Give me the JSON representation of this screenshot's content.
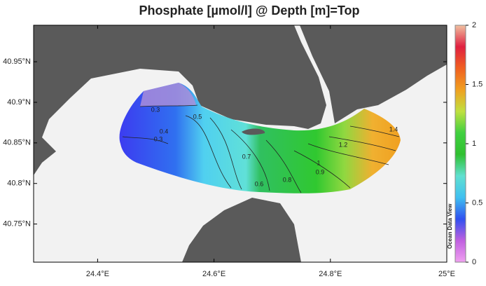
{
  "map": {
    "title": "Phosphate [µmol/l] @ Depth [m]=Top",
    "xlim": [
      24.29,
      25
    ],
    "ylim": [
      40.703,
      40.995
    ],
    "xticks": [
      {
        "value": 24.4,
        "label": "24.4°E"
      },
      {
        "value": 24.6,
        "label": "24.6°E"
      },
      {
        "value": 24.8,
        "label": "24.8°E"
      },
      {
        "value": 25,
        "label": "25°E"
      }
    ],
    "yticks": [
      {
        "value": 40.75,
        "label": "40.75°N"
      },
      {
        "value": 40.8,
        "label": "40.8°N"
      },
      {
        "value": 40.85,
        "label": "40.85°N"
      },
      {
        "value": 40.9,
        "label": "40.9°N"
      },
      {
        "value": 40.95,
        "label": "40.95°N"
      }
    ],
    "colorbar": {
      "range": [
        0,
        2
      ],
      "ticks": [
        0,
        0.5,
        1,
        1.5,
        2
      ],
      "colors": [
        "#f0a0f0",
        "#c060e0",
        "#3050f0",
        "#40c0f0",
        "#60e0d0",
        "#30c030",
        "#40d040",
        "#c0e040",
        "#f0a020",
        "#f06020",
        "#e02040",
        "#f0c0a0"
      ]
    },
    "contours": [
      0.3,
      0.5,
      0.4,
      0.3,
      0.7,
      0.6,
      0.8,
      0.9,
      1,
      1.2,
      1.4
    ],
    "watermark": "Ocean Data View"
  }
}
